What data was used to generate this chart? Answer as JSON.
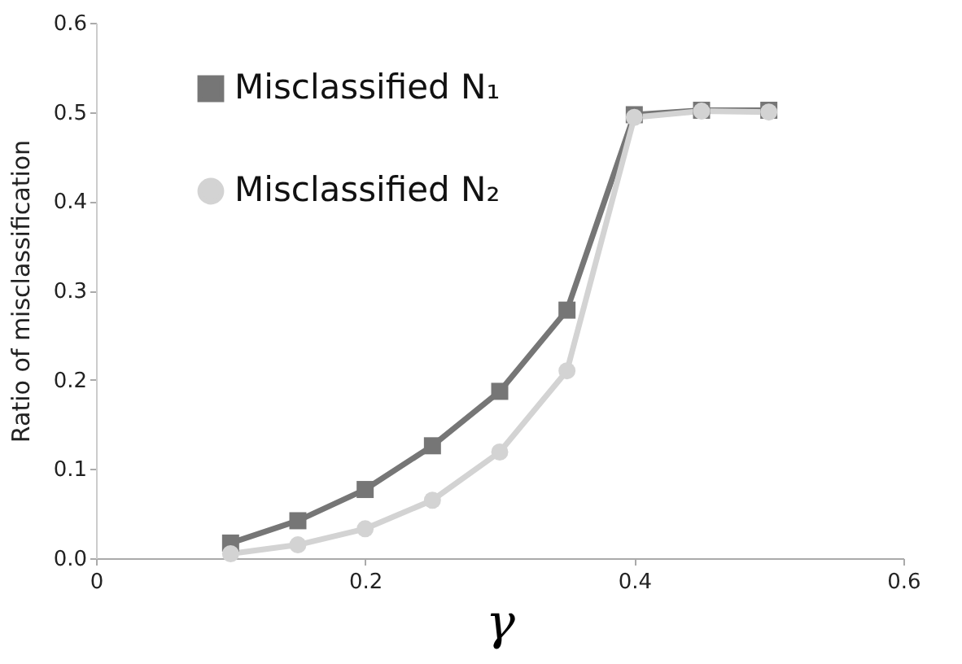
{
  "chart_data": {
    "type": "line",
    "xlabel": "γ",
    "ylabel": "Ratio of misclassification",
    "x": [
      0.1,
      0.15,
      0.2,
      0.25,
      0.3,
      0.35,
      0.4,
      0.45,
      0.5
    ],
    "series": [
      {
        "name": "Misclassified N₁",
        "color": "#767676",
        "marker": "square",
        "values": [
          0.017,
          0.042,
          0.077,
          0.126,
          0.187,
          0.278,
          0.497,
          0.502,
          0.502
        ]
      },
      {
        "name": "Misclassified N₂",
        "color": "#d3d3d3",
        "marker": "circle",
        "values": [
          0.005,
          0.015,
          0.033,
          0.065,
          0.119,
          0.21,
          0.494,
          0.501,
          0.5
        ]
      }
    ],
    "xlim": [
      0,
      0.6
    ],
    "xticks": [
      0,
      0.2,
      0.4,
      0.6
    ],
    "ylim": [
      0,
      0.6
    ],
    "yticks": [
      {
        "value": 0,
        "label": "0.0"
      },
      0.1,
      0.2,
      0.3,
      0.4,
      0.5,
      0.6
    ],
    "grid": false,
    "legend": "top left",
    "line_style": "solid"
  }
}
